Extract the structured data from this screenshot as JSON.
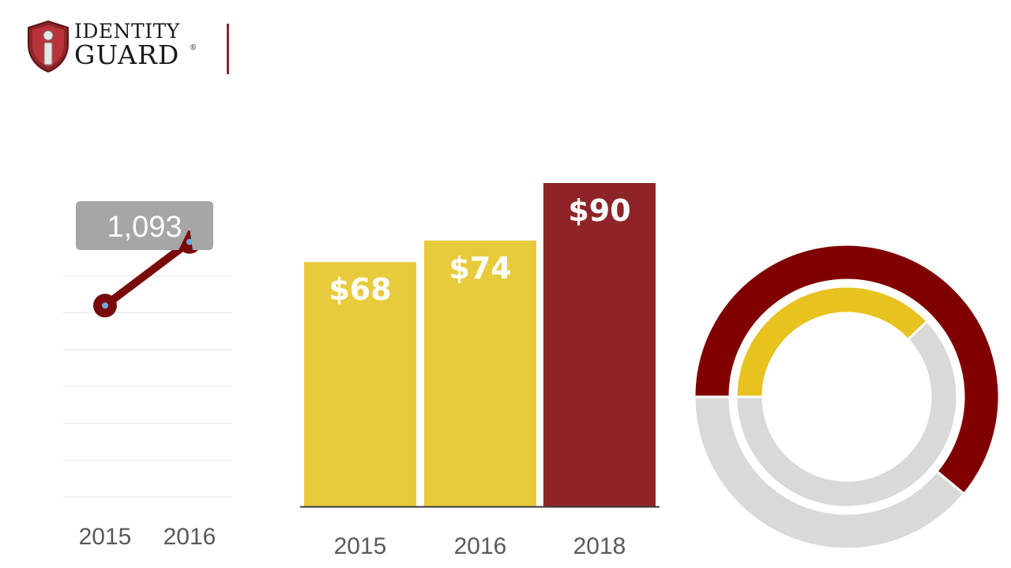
{
  "logo": {
    "line1": "IDENTITY",
    "line2": "GUARD",
    "reg_mark": "®"
  },
  "colors": {
    "brand_red": "#8e2428",
    "dark_red": "#800000",
    "line_red": "#7a0a0a",
    "gold": "#e8cb3c",
    "gold_ring": "#e8c21f",
    "gray_ring": "#d9d9d9",
    "callout_gray": "#a6a6a6",
    "grid": "#e4e4e4",
    "axis": "#3a3a3a",
    "tick_text": "#595959",
    "point_fill": "#6fa8dc"
  },
  "chart_data": [
    {
      "type": "line",
      "x": [
        "2015",
        "2016"
      ],
      "values": [
        920,
        1093
      ],
      "ylim": [
        400,
        1000
      ],
      "grid": true,
      "annotations": [
        {
          "text": "1,093",
          "x": "2016"
        }
      ]
    },
    {
      "type": "bar",
      "categories": [
        "2015",
        "2016",
        "2018"
      ],
      "values": [
        68,
        74,
        90
      ],
      "data_labels": [
        "$68",
        "$74",
        "$90"
      ],
      "bar_colors": [
        "#e8cb3c",
        "#e8cb3c",
        "#8e2428"
      ],
      "ylim": [
        0,
        90
      ]
    },
    {
      "type": "pie",
      "style": "half-donut-rings",
      "rings": [
        {
          "name": "outer",
          "value_fraction": 0.61,
          "color": "#800000",
          "rest_color": "#d9d9d9"
        },
        {
          "name": "inner",
          "value_fraction": 0.38,
          "color": "#e8c21f",
          "rest_color": "#d9d9d9"
        }
      ]
    }
  ]
}
